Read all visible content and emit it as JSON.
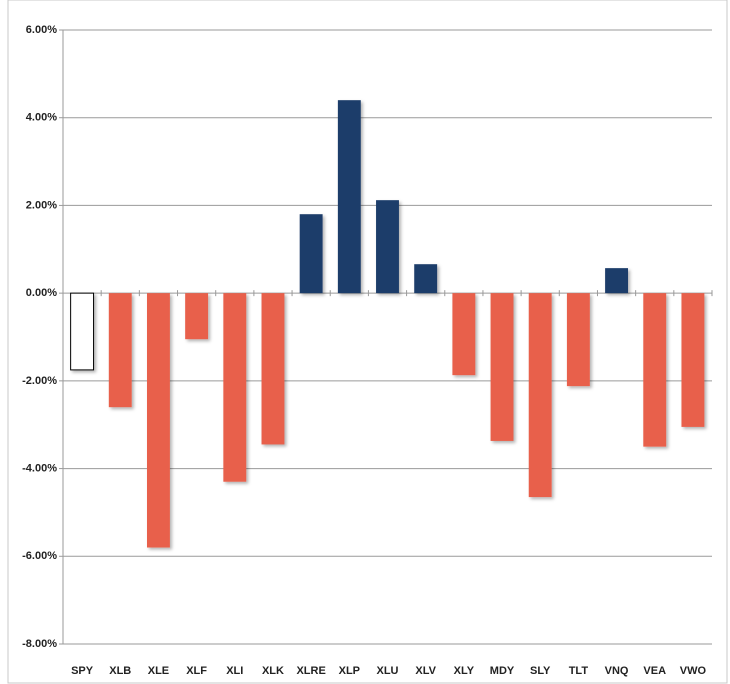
{
  "chart_data": {
    "type": "bar",
    "categories": [
      "SPY",
      "XLB",
      "XLE",
      "XLF",
      "XLI",
      "XLK",
      "XLRE",
      "XLP",
      "XLU",
      "XLV",
      "XLY",
      "MDY",
      "SLY",
      "TLT",
      "VNQ",
      "VEA",
      "VWO"
    ],
    "values": [
      -1.75,
      -2.6,
      -5.8,
      -1.05,
      -4.3,
      -3.45,
      1.8,
      4.4,
      2.12,
      0.66,
      -1.87,
      -3.37,
      -4.65,
      -2.12,
      0.57,
      -3.5,
      -3.05
    ],
    "colors": [
      "#ffffff",
      "#e8604c",
      "#e8604c",
      "#e8604c",
      "#e8604c",
      "#e8604c",
      "#1f3d6b",
      "#1f3d6b",
      "#1f3d6b",
      "#1f3d6b",
      "#e8604c",
      "#e8604c",
      "#e8604c",
      "#e8604c",
      "#1f3d6b",
      "#e8604c",
      "#e8604c"
    ],
    "edge_colors": [
      "#000000",
      "none",
      "none",
      "none",
      "none",
      "none",
      "none",
      "none",
      "none",
      "none",
      "none",
      "none",
      "none",
      "none",
      "none",
      "none",
      "none"
    ],
    "ylim": [
      -8,
      6
    ],
    "yticks": [
      {
        "value": -8,
        "label": "-8.00%"
      },
      {
        "value": -6,
        "label": "-6.00%"
      },
      {
        "value": -4,
        "label": "-4.00%"
      },
      {
        "value": -2,
        "label": "-2.00%"
      },
      {
        "value": 0,
        "label": "0.00%"
      },
      {
        "value": 2,
        "label": "2.00%"
      },
      {
        "value": 4,
        "label": "4.00%"
      },
      {
        "value": 6,
        "label": "6.00%"
      }
    ],
    "grid": true
  }
}
